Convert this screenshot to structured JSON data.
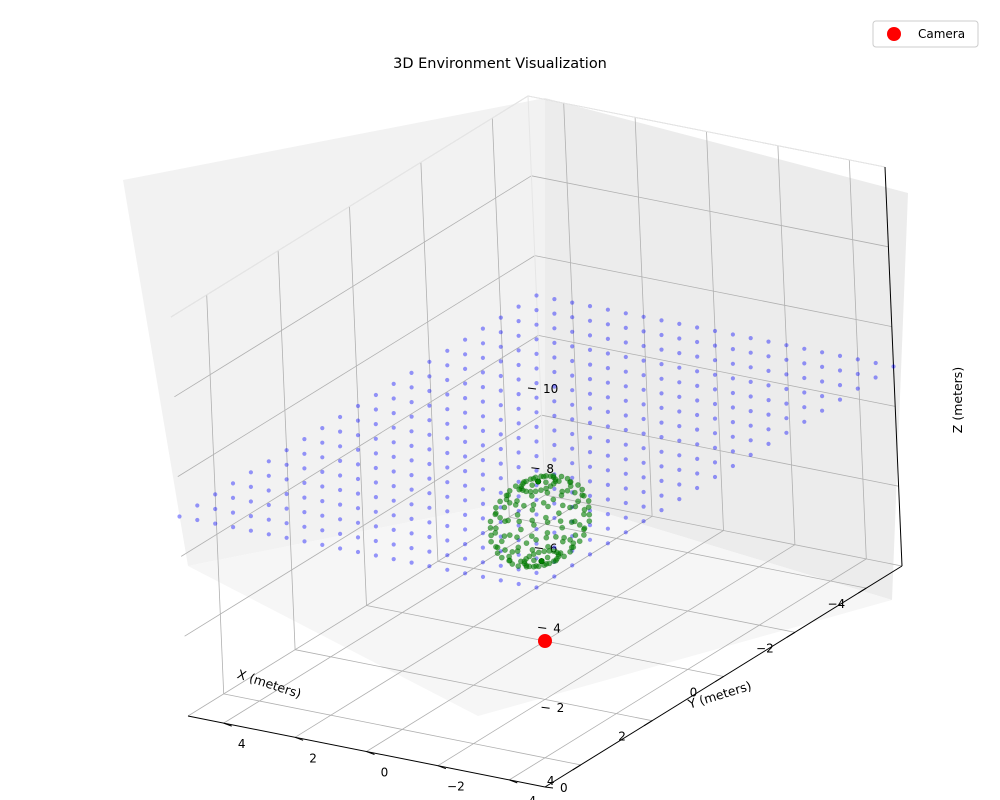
{
  "chart_data": {
    "type": "scatter",
    "projection": "3d",
    "title": "3D Environment Visualization",
    "xlabel": "X (meters)",
    "ylabel": "Y (meters)",
    "zlabel": "Z (meters)",
    "xlim": [
      -5,
      5
    ],
    "ylim": [
      -5,
      5
    ],
    "zlim": [
      0,
      10
    ],
    "xticks": [
      -4,
      -2,
      0,
      2,
      4
    ],
    "yticks": [
      -4,
      -2,
      0,
      2,
      4
    ],
    "zticks": [
      0,
      2,
      4,
      6,
      8,
      10
    ],
    "grid": true,
    "legend": {
      "position": "top-right",
      "entries": [
        "Camera"
      ]
    },
    "series": [
      {
        "name": "Camera",
        "color": "#ff0000",
        "marker": "circle",
        "points": [
          [
            0,
            0,
            0
          ]
        ]
      },
      {
        "name": "",
        "kind": "plane-grid",
        "color": "#0000ff",
        "alpha": 0.4,
        "x_range": [
          -5,
          5
        ],
        "y_range": [
          -5,
          5
        ],
        "z": 5,
        "spacing": 0.5
      },
      {
        "name": "",
        "kind": "sphere",
        "color": "#008000",
        "alpha": 0.6,
        "center": [
          0,
          0,
          3
        ],
        "radius": 1
      }
    ]
  }
}
